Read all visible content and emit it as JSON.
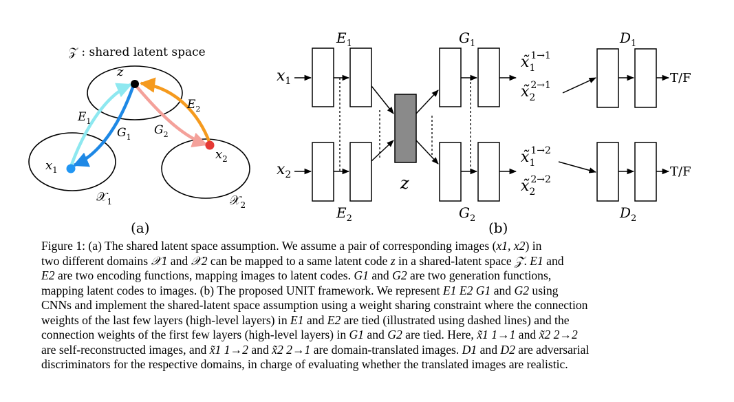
{
  "panel_a": {
    "space_label": "𝒵 : shared latent space",
    "z": "z",
    "x1": "x",
    "x1_sub": "1",
    "x2": "x",
    "x2_sub": "2",
    "domain1": "𝒳",
    "domain1_sub": "1",
    "domain2": "𝒳",
    "domain2_sub": "2",
    "e1": "E",
    "e1_sub": "1",
    "g1": "G",
    "g1_sub": "1",
    "g2": "G",
    "g2_sub": "2",
    "e2": "E",
    "e2_sub": "2",
    "panel_label": "(a)",
    "colors": {
      "x1_dot": "#2196f3",
      "x2_dot": "#e53935",
      "z_dot": "#000000",
      "e1_arrow": "#8ee8f0",
      "g1_arrow": "#1e88e5",
      "g2_arrow": "#f4a19a",
      "e2_arrow": "#f59a1e"
    }
  },
  "panel_b": {
    "x1": "x",
    "x1_sub": "1",
    "x2": "x",
    "x2_sub": "2",
    "e1": "E",
    "e1_sub": "1",
    "e2": "E",
    "e2_sub": "2",
    "g1": "G",
    "g1_sub": "1",
    "g2": "G",
    "g2_sub": "2",
    "z": "z",
    "d1": "D",
    "d1_sub": "1",
    "d2": "D",
    "d2_sub": "2",
    "out_11": "x̃",
    "out_11_sub": "1",
    "out_11_sup": "1→1",
    "out_21": "x̃",
    "out_21_sub": "2",
    "out_21_sup": "2→1",
    "out_12": "x̃",
    "out_12_sub": "1",
    "out_12_sup": "1→2",
    "out_22": "x̃",
    "out_22_sub": "2",
    "out_22_sup": "2→2",
    "tf1": "T/F",
    "tf2": "T/F",
    "panel_label": "(b)",
    "colors": {
      "latent_fill": "#8a8a8a"
    }
  },
  "caption": {
    "lead": "Figure 1:",
    "l1a": " (a) The shared latent space assumption. We assume a pair of corresponding images (",
    "l1b": ") in",
    "l2a": "two different domains ",
    "l2b": " and ",
    "l2c": " can be mapped to a same latent code ",
    "l2d": " in a shared-latent space ",
    "l2e": ". ",
    "l2f": " and",
    "l3a": " are two encoding functions, mapping images to latent codes. ",
    "l3b": " and ",
    "l3c": " are two generation functions,",
    "l4a": "mapping latent codes to images. (b) The proposed UNIT framework. We represent ",
    "l4b": " and ",
    "l4c": " using",
    "l5": "CNNs and implement the shared-latent space assumption using a weight sharing constraint where the connection",
    "l6a": "weights of the last few layers (high-level layers) in ",
    "l6b": " and ",
    "l6c": " are tied (illustrated using dashed lines) and the",
    "l7a": "connection weights of the first few layers (high-level layers) in ",
    "l7b": " and ",
    "l7c": " are tied. Here, ",
    "l7d": " and ",
    "l8a": "are self-reconstructed images, and ",
    "l8b": " and ",
    "l8c": " are domain-translated images. ",
    "l8d": " and ",
    "l8e": " are adversarial",
    "l9": "discriminators for the respective domains, in charge of evaluating whether the translated images are realistic.",
    "m_x1x2": "x1, x2",
    "m_X1": "𝒳1",
    "m_X2": "𝒳2",
    "m_z": "z",
    "m_Z": "𝒵",
    "m_E1": "E1",
    "m_E2": "E2",
    "m_G1": "G1",
    "m_G2": "G2",
    "m_E1E2G1": "E1 E2 G1",
    "m_D1": "D1",
    "m_D2": "D2",
    "m_x11": "x̃1 1→1",
    "m_x22": "x̃2 2→2",
    "m_x12": "x̃1 1→2",
    "m_x21": "x̃2 2→1"
  }
}
